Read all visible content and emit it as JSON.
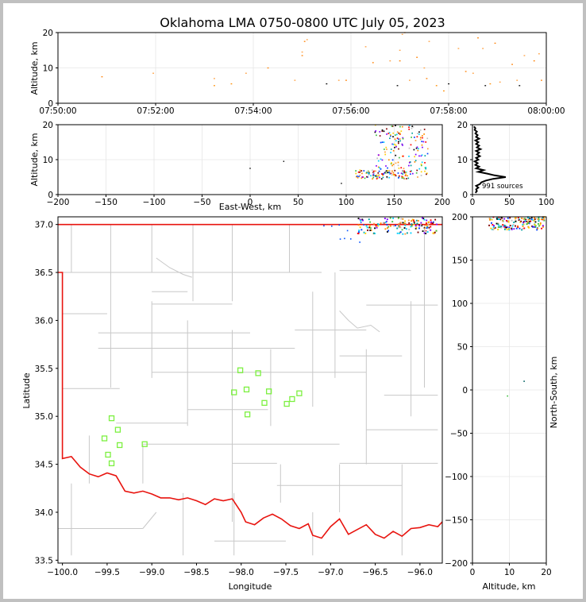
{
  "title": "Oklahoma LMA 0750-0800 UTC July 05, 2023",
  "chart_data": [
    {
      "type": "scatter",
      "panel": "time-altitude",
      "ylabel": "Altitude, km",
      "ylim": [
        0,
        20
      ],
      "yticks": [
        "0",
        "10",
        "20"
      ],
      "xticks": [
        "07:50:00",
        "07:52:00",
        "07:54:00",
        "07:56:00",
        "07:58:00",
        "08:00:00"
      ],
      "x_range_min": [
        0,
        10
      ],
      "points": [
        {
          "t": 0.9,
          "z": 7.5
        },
        {
          "t": 1.95,
          "z": 8.5
        },
        {
          "t": 3.2,
          "z": 5.0
        },
        {
          "t": 3.2,
          "z": 7.0
        },
        {
          "t": 3.55,
          "z": 5.5
        },
        {
          "t": 3.85,
          "z": 8.5
        },
        {
          "t": 4.3,
          "z": 10.0
        },
        {
          "t": 4.85,
          "z": 6.5
        },
        {
          "t": 5.0,
          "z": 13.5
        },
        {
          "t": 5.0,
          "z": 14.5
        },
        {
          "t": 5.05,
          "z": 17.5
        },
        {
          "t": 5.1,
          "z": 18.0
        },
        {
          "t": 5.5,
          "z": 5.5
        },
        {
          "t": 5.75,
          "z": 6.5
        },
        {
          "t": 5.9,
          "z": 6.5
        },
        {
          "t": 6.3,
          "z": 16.0
        },
        {
          "t": 6.45,
          "z": 11.5
        },
        {
          "t": 6.8,
          "z": 12.0
        },
        {
          "t": 6.95,
          "z": 5.0
        },
        {
          "t": 7.0,
          "z": 15.0
        },
        {
          "t": 7.0,
          "z": 12.0
        },
        {
          "t": 7.05,
          "z": 19.5
        },
        {
          "t": 7.1,
          "z": 20.0
        },
        {
          "t": 7.2,
          "z": 6.5
        },
        {
          "t": 7.35,
          "z": 13.0
        },
        {
          "t": 7.5,
          "z": 10.0
        },
        {
          "t": 7.55,
          "z": 7.0
        },
        {
          "t": 7.6,
          "z": 17.5
        },
        {
          "t": 7.75,
          "z": 5.0
        },
        {
          "t": 7.9,
          "z": 3.5
        },
        {
          "t": 8.0,
          "z": 5.5
        },
        {
          "t": 8.2,
          "z": 15.5
        },
        {
          "t": 8.35,
          "z": 9.0
        },
        {
          "t": 8.5,
          "z": 8.5
        },
        {
          "t": 8.6,
          "z": 18.5
        },
        {
          "t": 8.7,
          "z": 15.5
        },
        {
          "t": 8.75,
          "z": 5.0
        },
        {
          "t": 8.85,
          "z": 5.5
        },
        {
          "t": 8.95,
          "z": 17.0
        },
        {
          "t": 9.05,
          "z": 6.0
        },
        {
          "t": 9.3,
          "z": 11.0
        },
        {
          "t": 9.4,
          "z": 6.5
        },
        {
          "t": 9.45,
          "z": 5.0
        },
        {
          "t": 9.55,
          "z": 13.5
        },
        {
          "t": 9.75,
          "z": 12.0
        },
        {
          "t": 9.85,
          "z": 14.0
        },
        {
          "t": 9.9,
          "z": 6.5
        }
      ]
    },
    {
      "type": "scatter",
      "panel": "east-west-altitude",
      "xlabel": "East-West, km",
      "ylabel": "Altitude, km",
      "xlim": [
        -200,
        200
      ],
      "ylim": [
        0,
        20
      ],
      "xticks": [
        "-200",
        "-150",
        "-100",
        "-50",
        "0",
        "50",
        "100",
        "150",
        "200"
      ],
      "yticks": [
        "0",
        "10",
        "20"
      ]
    },
    {
      "type": "line",
      "panel": "altitude-histogram",
      "xlim": [
        0,
        100
      ],
      "ylim": [
        0,
        20
      ],
      "xticks": [
        "0",
        "50",
        "100"
      ],
      "yticks": [
        "0",
        "10",
        "20"
      ],
      "annotation": "991 sources",
      "profile": [
        {
          "z": 0.5,
          "n": 4
        },
        {
          "z": 1.0,
          "n": 6
        },
        {
          "z": 1.5,
          "n": 5
        },
        {
          "z": 2.0,
          "n": 8
        },
        {
          "z": 2.5,
          "n": 5
        },
        {
          "z": 3.0,
          "n": 10
        },
        {
          "z": 3.5,
          "n": 12
        },
        {
          "z": 4.0,
          "n": 18
        },
        {
          "z": 4.5,
          "n": 28
        },
        {
          "z": 5.0,
          "n": 45
        },
        {
          "z": 5.5,
          "n": 30
        },
        {
          "z": 6.0,
          "n": 20
        },
        {
          "z": 6.5,
          "n": 8
        },
        {
          "z": 7.0,
          "n": 15
        },
        {
          "z": 7.5,
          "n": 5
        },
        {
          "z": 8.0,
          "n": 9
        },
        {
          "z": 8.5,
          "n": 4
        },
        {
          "z": 9.0,
          "n": 7
        },
        {
          "z": 9.5,
          "n": 3
        },
        {
          "z": 10.0,
          "n": 8
        },
        {
          "z": 10.5,
          "n": 5
        },
        {
          "z": 11.0,
          "n": 10
        },
        {
          "z": 11.5,
          "n": 6
        },
        {
          "z": 12.0,
          "n": 9
        },
        {
          "z": 12.5,
          "n": 5
        },
        {
          "z": 13.0,
          "n": 11
        },
        {
          "z": 13.5,
          "n": 6
        },
        {
          "z": 14.0,
          "n": 9
        },
        {
          "z": 14.5,
          "n": 5
        },
        {
          "z": 15.0,
          "n": 8
        },
        {
          "z": 15.5,
          "n": 4
        },
        {
          "z": 16.0,
          "n": 9
        },
        {
          "z": 16.5,
          "n": 5
        },
        {
          "z": 17.0,
          "n": 7
        },
        {
          "z": 17.5,
          "n": 4
        },
        {
          "z": 18.0,
          "n": 6
        },
        {
          "z": 18.5,
          "n": 3
        },
        {
          "z": 19.0,
          "n": 4
        },
        {
          "z": 19.5,
          "n": 2
        }
      ]
    },
    {
      "type": "scatter",
      "panel": "plan-view-map",
      "xlabel": "Longitude",
      "ylabel": "Latitude",
      "xlim": [
        -100.05,
        -95.75
      ],
      "ylim": [
        33.47,
        37.08
      ],
      "xticks": [
        "-100.0",
        "-99.5",
        "-99.0",
        "-98.5",
        "-98.0",
        "-97.5",
        "-97.0",
        "-96.5",
        "-96.0"
      ],
      "yticks": [
        "33.5",
        "34.0",
        "34.5",
        "35.0",
        "35.5",
        "36.0",
        "36.5",
        "37.0"
      ],
      "stations": [
        {
          "lon": -99.45,
          "lat": 34.98
        },
        {
          "lon": -99.38,
          "lat": 34.86
        },
        {
          "lon": -99.53,
          "lat": 34.77
        },
        {
          "lon": -99.36,
          "lat": 34.7
        },
        {
          "lon": -99.49,
          "lat": 34.6
        },
        {
          "lon": -99.45,
          "lat": 34.51
        },
        {
          "lon": -99.08,
          "lat": 34.71
        },
        {
          "lon": -98.01,
          "lat": 35.48
        },
        {
          "lon": -97.81,
          "lat": 35.45
        },
        {
          "lon": -98.08,
          "lat": 35.25
        },
        {
          "lon": -97.94,
          "lat": 35.28
        },
        {
          "lon": -97.69,
          "lat": 35.26
        },
        {
          "lon": -97.35,
          "lat": 35.24
        },
        {
          "lon": -97.43,
          "lat": 35.18
        },
        {
          "lon": -97.74,
          "lat": 35.14
        },
        {
          "lon": -97.49,
          "lat": 35.13
        },
        {
          "lon": -97.93,
          "lat": 35.02
        }
      ]
    },
    {
      "type": "scatter",
      "panel": "altitude-north-south",
      "xlabel": "Altitude, km",
      "ylabel": "North-South, km",
      "xlim": [
        0,
        20
      ],
      "ylim": [
        -200,
        200
      ],
      "xticks": [
        "0",
        "10",
        "20"
      ],
      "yticks": [
        "-200",
        "-150",
        "-100",
        "-50",
        "0",
        "50",
        "100",
        "150",
        "200"
      ]
    }
  ]
}
